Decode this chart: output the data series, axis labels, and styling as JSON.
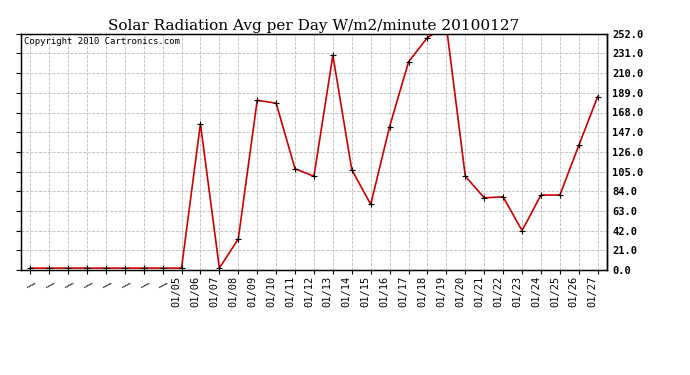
{
  "title": "Solar Radiation Avg per Day W/m2/minute 20100127",
  "copyright_text": "Copyright 2010 Cartronics.com",
  "early_labels": [
    "\\",
    "\\",
    "\\",
    "\\",
    "\\",
    "\\",
    "\\",
    "\\"
  ],
  "x_labels": [
    "01/05",
    "01/06",
    "01/07",
    "01/08",
    "01/09",
    "01/10",
    "01/11",
    "01/12",
    "01/13",
    "01/14",
    "01/15",
    "01/16",
    "01/17",
    "01/18",
    "01/19",
    "01/20",
    "01/21",
    "01/22",
    "01/23",
    "01/24",
    "01/25",
    "01/26",
    "01/27"
  ],
  "early_values": [
    2.0,
    2.0,
    2.0,
    2.0,
    2.0,
    2.0,
    2.0,
    2.0
  ],
  "named_values": [
    2.0,
    156.0,
    2.0,
    33.0,
    181.0,
    178.0,
    108.0,
    100.0,
    229.0,
    107.0,
    70.0,
    153.0,
    222.0,
    248.0,
    260.0,
    100.0,
    77.0,
    78.0,
    42.0,
    80.0,
    80.0,
    133.0,
    185.0
  ],
  "ylim": [
    0.0,
    252.0
  ],
  "yticks": [
    0.0,
    21.0,
    42.0,
    63.0,
    84.0,
    105.0,
    126.0,
    147.0,
    168.0,
    189.0,
    210.0,
    231.0,
    252.0
  ],
  "line_color": "#cc0000",
  "bg_color": "#ffffff",
  "grid_color": "#bbbbbb",
  "title_fontsize": 11,
  "axis_fontsize": 7.5,
  "copyright_fontsize": 6.5
}
